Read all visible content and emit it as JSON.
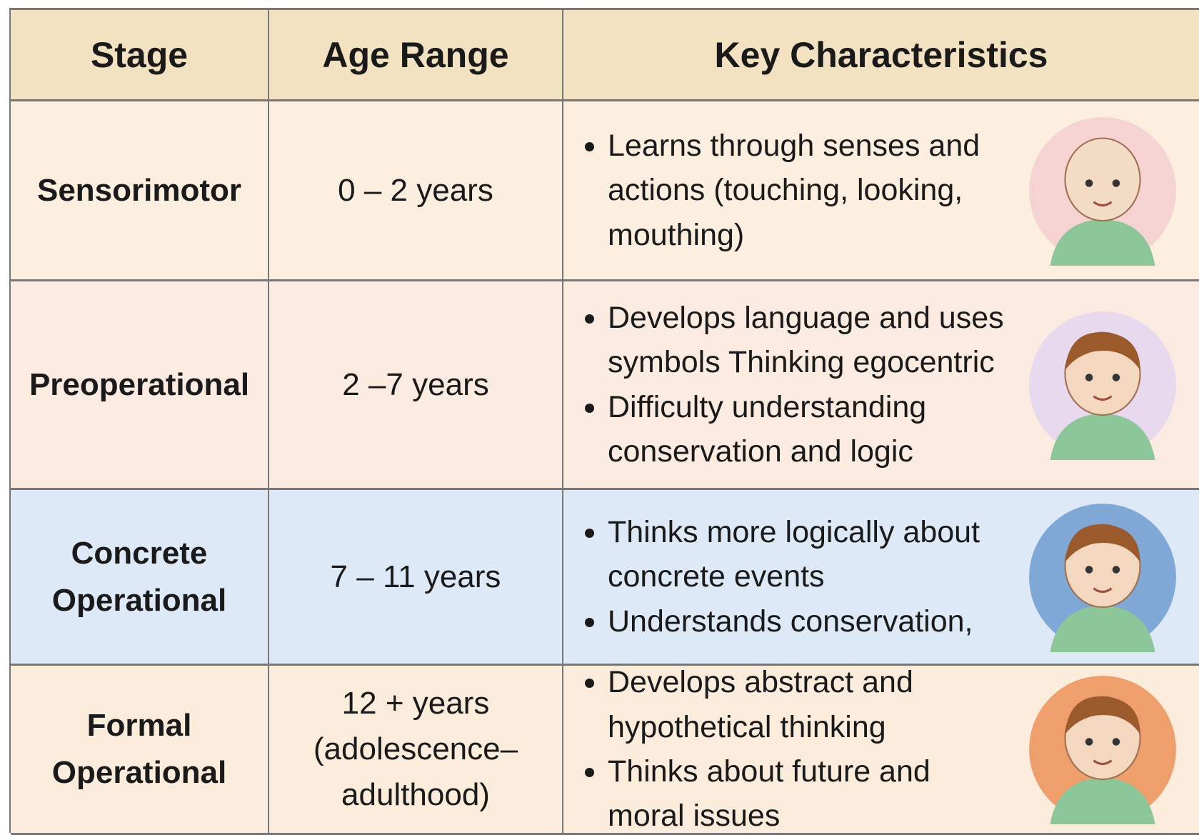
{
  "table": {
    "header": [
      "Stage",
      "Age Range",
      "Key Characteristics"
    ],
    "rows": [
      {
        "stage": "Sensorimotor",
        "age": [
          "0 – 2 years"
        ],
        "characteristics": [
          "Learns through senses and actions (touching, looking, mouthing)"
        ]
      },
      {
        "stage": "Preoperational",
        "age": [
          "2 –7 years"
        ],
        "characteristics": [
          "Develops language and uses symbols  Thinking egocentric",
          "Difficulty understanding conservation and logic"
        ]
      },
      {
        "stage": "Concrete Operational",
        "age": [
          "7 – 11 years"
        ],
        "characteristics": [
          "Thinks more logically about concrete events",
          "Understands conservation,"
        ]
      },
      {
        "stage": "Formal Operational",
        "age": [
          "12 + years",
          "(adolescence–",
          "adulthood)"
        ],
        "characteristics": [
          "Develops abstract and hypothetical thinking",
          "Thinks about future and moral issues"
        ]
      }
    ]
  }
}
